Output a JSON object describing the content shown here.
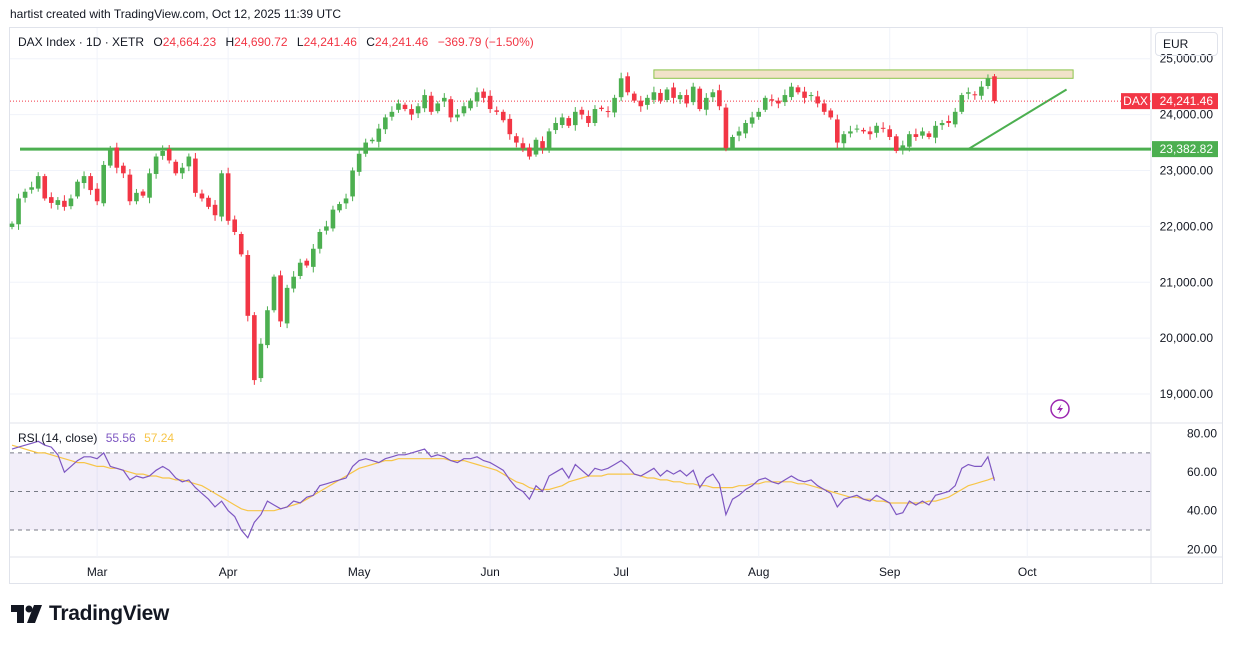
{
  "header": {
    "credit": "hartist created with TradingView.com, Oct 12, 2025 11:39 UTC"
  },
  "legend": {
    "symbol": "DAX Index · 1D · XETR",
    "open_label": "O",
    "open": "24,664.23",
    "high_label": "H",
    "high": "24,690.72",
    "low_label": "L",
    "low": "24,241.46",
    "close_label": "C",
    "close": "24,241.46",
    "change": "−369.79 (−1.50%)"
  },
  "currency": "EUR",
  "price_tag": {
    "ticker": "DAX",
    "value": "24,241.46",
    "color": "#f23645"
  },
  "support_tag": {
    "value": "23,382.82",
    "color": "#4caf50"
  },
  "rsi_legend": {
    "label": "RSI (14, close)",
    "rsi": "55.56",
    "ma": "57.24"
  },
  "brand": {
    "name": "TradingView"
  },
  "colors": {
    "up": "#4caf50",
    "down": "#f23645",
    "rsi": "#7e57c2",
    "rsi_ma": "#f7c548",
    "support": "#4caf50",
    "zone_fill": "#f2e2c9"
  },
  "icons": {
    "alert": "lightning-icon",
    "logo": "tradingview-logo-icon"
  },
  "chart_data": [
    {
      "type": "candlestick",
      "title": "DAX Index · 1D · XETR",
      "y_axis_labels": [
        "25,000.00",
        "24,000.00",
        "23,000.00",
        "22,000.00",
        "21,000.00",
        "20,000.00",
        "19,000.00"
      ],
      "y_axis_values": [
        25000,
        24000,
        23000,
        22000,
        21000,
        20000,
        19000
      ],
      "ylim": [
        18500,
        25550
      ],
      "x_axis_labels": [
        "Mar",
        "Apr",
        "May",
        "Jun",
        "Jul",
        "Aug",
        "Sep",
        "Oct"
      ],
      "x_axis_label_index": [
        13,
        33,
        53,
        73,
        93,
        114,
        134,
        155
      ],
      "grid": true,
      "series": [
        {
          "name": "DAX",
          "closes": [
            22050,
            22500,
            22620,
            22700,
            22900,
            22500,
            22420,
            22470,
            22350,
            22500,
            22800,
            22900,
            22650,
            22450,
            23100,
            23400,
            23050,
            22950,
            22450,
            22600,
            22550,
            22950,
            23250,
            23350,
            23180,
            22950,
            23050,
            23250,
            22600,
            22500,
            22350,
            22200,
            22950,
            22100,
            21900,
            21500,
            20400,
            19250,
            19900,
            20500,
            21100,
            20300,
            20900,
            21100,
            21350,
            21300,
            21600,
            21900,
            22000,
            22300,
            22400,
            22500,
            23000,
            23300,
            23500,
            23550,
            23750,
            23950,
            24050,
            24200,
            24100,
            24000,
            24150,
            24350,
            24050,
            24200,
            24300,
            23950,
            24000,
            24150,
            24250,
            24400,
            24300,
            24100,
            24050,
            23900,
            23650,
            23500,
            23400,
            23250,
            23550,
            23400,
            23700,
            23850,
            23950,
            23800,
            24050,
            24000,
            23850,
            24100,
            24100,
            24050,
            24300,
            24650,
            24400,
            24250,
            24150,
            24300,
            24400,
            24250,
            24450,
            24300,
            24350,
            24200,
            24500,
            24100,
            24300,
            24400,
            24150,
            23400,
            23600,
            23700,
            23850,
            23950,
            24050,
            24300,
            24250,
            24200,
            24350,
            24500,
            24400,
            24300,
            24350,
            24200,
            24050,
            23950,
            23500,
            23650,
            23700,
            23750,
            23700,
            23650,
            23800,
            23750,
            23600,
            23350,
            23450,
            23650,
            23600,
            23700,
            23600,
            23800,
            23850,
            23850,
            24050,
            24350,
            24400,
            24350,
            24500,
            24650,
            24241.46
          ]
        }
      ],
      "annotations": {
        "support_level": 23382.82,
        "resistance_zone": [
          24650,
          24800
        ],
        "rising_trendline": [
          [
            146,
            23382.82
          ],
          [
            161,
            24450
          ]
        ],
        "last_price": 24241.46
      }
    },
    {
      "type": "line",
      "title": "RSI (14, close)",
      "y_axis_labels": [
        "80.00",
        "60.00",
        "40.00",
        "20.00"
      ],
      "y_axis_values": [
        80,
        60,
        40,
        20
      ],
      "ylim": [
        16,
        85
      ],
      "band": [
        30,
        70
      ],
      "midline": 50,
      "series": [
        {
          "name": "RSI",
          "values": [
            72,
            73,
            74,
            75,
            76,
            74,
            73,
            69,
            60,
            63,
            66,
            68,
            68,
            67,
            70,
            63,
            62,
            61,
            56,
            58,
            57,
            58,
            61,
            63,
            61,
            57,
            55,
            56,
            52,
            49,
            46,
            42,
            45,
            40,
            37,
            30,
            26,
            34,
            38,
            45,
            43,
            41,
            42,
            45,
            44,
            47,
            48,
            53,
            54,
            55,
            56,
            57,
            63,
            66,
            67,
            66,
            65,
            67,
            68,
            69,
            69,
            70,
            71,
            72,
            68,
            69,
            68,
            66,
            65,
            67,
            67,
            68,
            66,
            65,
            63,
            61,
            56,
            52,
            50,
            46,
            53,
            50,
            58,
            60,
            62,
            57,
            64,
            61,
            58,
            62,
            61,
            62,
            64,
            66,
            63,
            59,
            58,
            60,
            62,
            58,
            61,
            59,
            61,
            58,
            61,
            52,
            57,
            59,
            54,
            38,
            46,
            48,
            51,
            53,
            56,
            57,
            55,
            54,
            56,
            58,
            56,
            55,
            56,
            53,
            51,
            49,
            42,
            46,
            47,
            48,
            46,
            45,
            48,
            46,
            44,
            38,
            39,
            45,
            43,
            45,
            43,
            48,
            49,
            50,
            53,
            62,
            64,
            63,
            63,
            68,
            55.56
          ]
        },
        {
          "name": "RSI-based MA",
          "values_note_hidden": false,
          "values": [
            74,
            73,
            72,
            71,
            70,
            70,
            69,
            68,
            67,
            66,
            65,
            65,
            64,
            63,
            63,
            62,
            62,
            61,
            60,
            59,
            59,
            58,
            58,
            57,
            57,
            56,
            56,
            55,
            54,
            53,
            51,
            49,
            47,
            45,
            43,
            41,
            40,
            40,
            40,
            40,
            40,
            41,
            42,
            43,
            44,
            46,
            48,
            50,
            52,
            54,
            56,
            58,
            60,
            62,
            63,
            64,
            65,
            66,
            66,
            67,
            67,
            67,
            67,
            67,
            67,
            67,
            67,
            66,
            66,
            66,
            65,
            64,
            63,
            62,
            61,
            59,
            57,
            55,
            54,
            52,
            51,
            51,
            51,
            52,
            53,
            55,
            56,
            57,
            58,
            58,
            58,
            59,
            59,
            59,
            59,
            59,
            58,
            57,
            57,
            56,
            56,
            55,
            55,
            54,
            54,
            53,
            53,
            52,
            52,
            52,
            52,
            53,
            53,
            54,
            54,
            55,
            55,
            55,
            55,
            55,
            54,
            54,
            53,
            52,
            51,
            50,
            49,
            48,
            47,
            47,
            46,
            46,
            45,
            45,
            44,
            44,
            44,
            44,
            44,
            44,
            45,
            45,
            46,
            47,
            49,
            51,
            53,
            54,
            55,
            56,
            57.24
          ]
        }
      ]
    }
  ]
}
